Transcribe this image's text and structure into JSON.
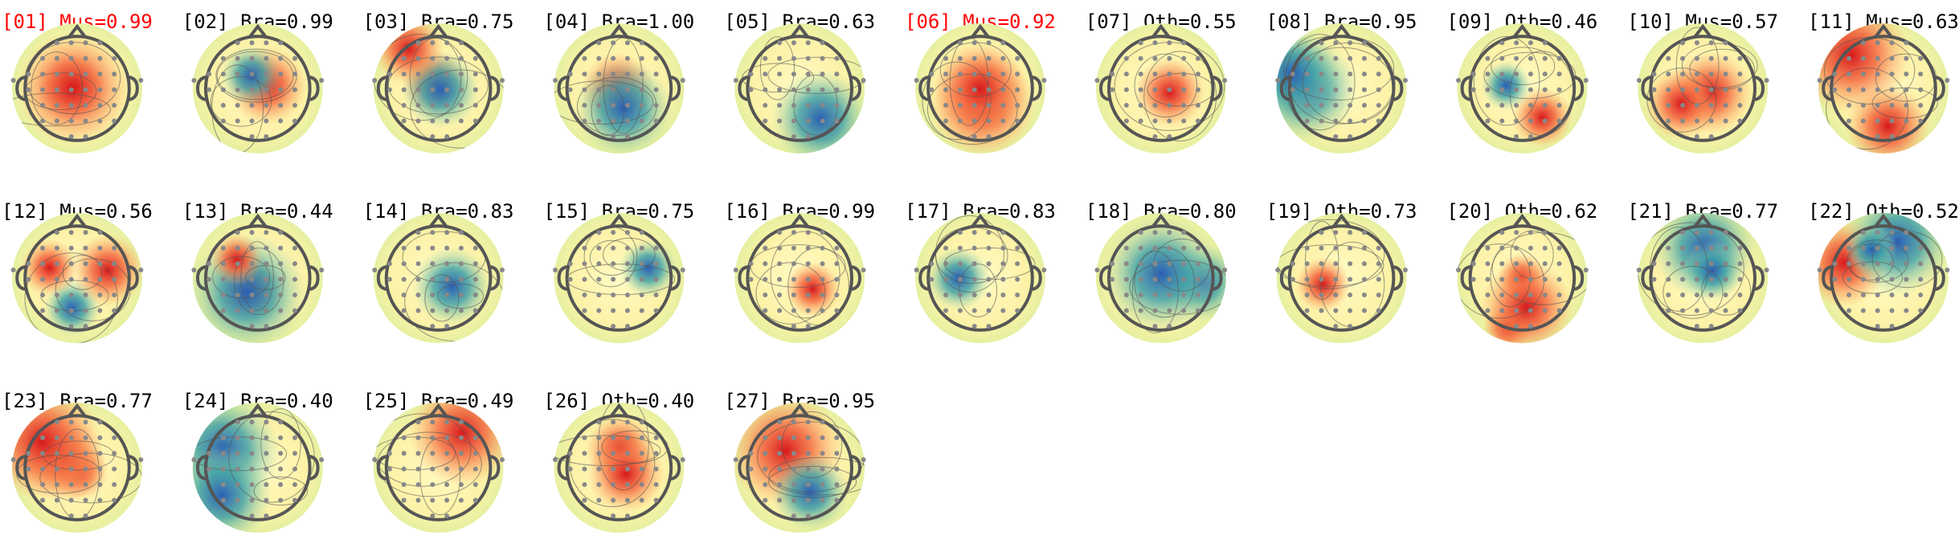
{
  "components": [
    {
      "label": "[01] Mus=0.99",
      "color": "#ff0000"
    },
    {
      "label": "[02] Bra=0.99",
      "color": "#000000"
    },
    {
      "label": "[03] Bra=0.75",
      "color": "#000000"
    },
    {
      "label": "[04] Bra=1.00",
      "color": "#000000"
    },
    {
      "label": "[05] Bra=0.63",
      "color": "#000000"
    },
    {
      "label": "[06] Mus=0.92",
      "color": "#ff0000"
    },
    {
      "label": "[07] Oth=0.55",
      "color": "#000000"
    },
    {
      "label": "[08] Bra=0.95",
      "color": "#000000"
    },
    {
      "label": "[09] Oth=0.46",
      "color": "#000000"
    },
    {
      "label": "[10] Mus=0.57",
      "color": "#000000"
    },
    {
      "label": "[11] Mus=0.63",
      "color": "#000000"
    },
    {
      "label": "[12] Mus=0.56",
      "color": "#000000"
    },
    {
      "label": "[13] Bra=0.44",
      "color": "#000000"
    },
    {
      "label": "[14] Bra=0.83",
      "color": "#000000"
    },
    {
      "label": "[15] Bra=0.75",
      "color": "#000000"
    },
    {
      "label": "[16] Bra=0.99",
      "color": "#000000"
    },
    {
      "label": "[17] Bra=0.83",
      "color": "#000000"
    },
    {
      "label": "[18] Bra=0.80",
      "color": "#000000"
    },
    {
      "label": "[19] Oth=0.73",
      "color": "#000000"
    },
    {
      "label": "[20] Oth=0.62",
      "color": "#000000"
    },
    {
      "label": "[21] Bra=0.77",
      "color": "#000000"
    },
    {
      "label": "[22] Oth=0.52",
      "color": "#000000"
    },
    {
      "label": "[23] Bra=0.77",
      "color": "#000000"
    },
    {
      "label": "[24] Bra=0.40",
      "color": "#000000"
    },
    {
      "label": "[25] Bra=0.49",
      "color": "#000000"
    },
    {
      "label": "[26] Oth=0.40",
      "color": "#000000"
    },
    {
      "label": "[27] Bra=0.95",
      "color": "#000000"
    }
  ]
}
